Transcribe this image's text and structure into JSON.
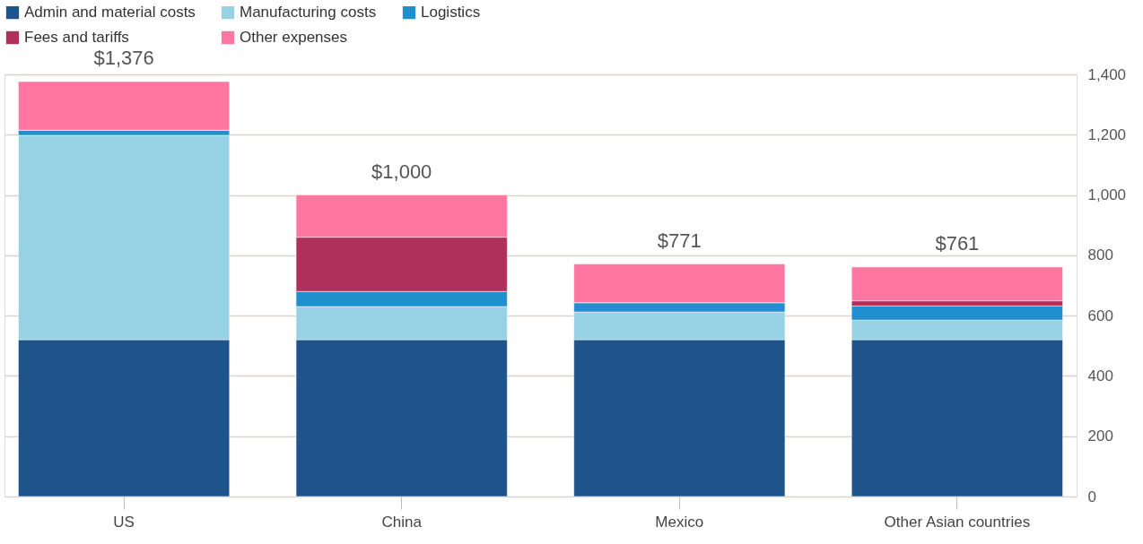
{
  "chart_data": {
    "type": "bar",
    "stacked": true,
    "categories": [
      "US",
      "China",
      "Mexico",
      "Other Asian countries"
    ],
    "series": [
      {
        "name": "Admin and material costs",
        "color": "#1f548a",
        "values": [
          520,
          520,
          520,
          520
        ]
      },
      {
        "name": "Manufacturing costs",
        "color": "#96d2e4",
        "values": [
          678,
          110,
          92,
          65
        ]
      },
      {
        "name": "Logistics",
        "color": "#1f8fce",
        "values": [
          17,
          50,
          31,
          47
        ]
      },
      {
        "name": "Fees and tariffs",
        "color": "#b0305c",
        "values": [
          0,
          180,
          0,
          17
        ]
      },
      {
        "name": "Other expenses",
        "color": "#ff76a3",
        "values": [
          161,
          140,
          128,
          112
        ]
      }
    ],
    "totals": [
      "$1,376",
      "$1,000",
      "$771",
      "$761"
    ],
    "ylim": [
      0,
      1400
    ],
    "yticks": [
      0,
      200,
      400,
      600,
      800,
      {
        "value": 1000,
        "label": "1,000"
      },
      {
        "value": 1200,
        "label": "1,200"
      },
      {
        "value": 1400,
        "label": "1,400"
      }
    ],
    "grid": "y",
    "legend": "top"
  }
}
